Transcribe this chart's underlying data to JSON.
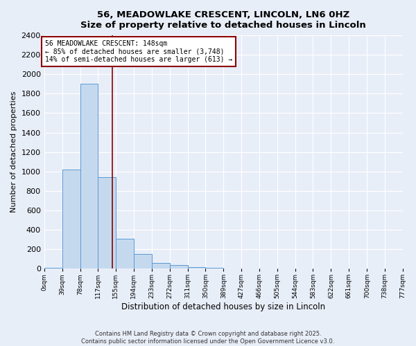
{
  "title_line1": "56, MEADOWLAKE CRESCENT, LINCOLN, LN6 0HZ",
  "title_line2": "Size of property relative to detached houses in Lincoln",
  "xlabel": "Distribution of detached houses by size in Lincoln",
  "ylabel": "Number of detached properties",
  "categories": [
    "0sqm",
    "39sqm",
    "78sqm",
    "117sqm",
    "155sqm",
    "194sqm",
    "233sqm",
    "272sqm",
    "311sqm",
    "350sqm",
    "389sqm",
    "427sqm",
    "466sqm",
    "505sqm",
    "544sqm",
    "583sqm",
    "622sqm",
    "661sqm",
    "700sqm",
    "738sqm",
    "777sqm"
  ],
  "bin_edges": [
    0,
    39,
    78,
    117,
    155,
    194,
    233,
    272,
    311,
    350,
    389,
    427,
    466,
    505,
    544,
    583,
    622,
    661,
    700,
    738,
    777
  ],
  "values": [
    10,
    1020,
    1900,
    940,
    310,
    150,
    60,
    40,
    15,
    5,
    3,
    0,
    0,
    0,
    0,
    0,
    0,
    0,
    0,
    0
  ],
  "bar_color": "#c5d9ee",
  "bar_edge_color": "#5b9bd5",
  "property_line_x": 148,
  "property_line_color": "#8b0000",
  "ylim": [
    0,
    2400
  ],
  "yticks": [
    0,
    200,
    400,
    600,
    800,
    1000,
    1200,
    1400,
    1600,
    1800,
    2000,
    2200,
    2400
  ],
  "annotation_text": "56 MEADOWLAKE CRESCENT: 148sqm\n← 85% of detached houses are smaller (3,748)\n14% of semi-detached houses are larger (613) →",
  "annotation_box_color": "#8b0000",
  "background_color": "#e8eef8",
  "grid_color": "#ffffff",
  "footnote": "Contains HM Land Registry data © Crown copyright and database right 2025.\nContains public sector information licensed under the Open Government Licence v3.0."
}
